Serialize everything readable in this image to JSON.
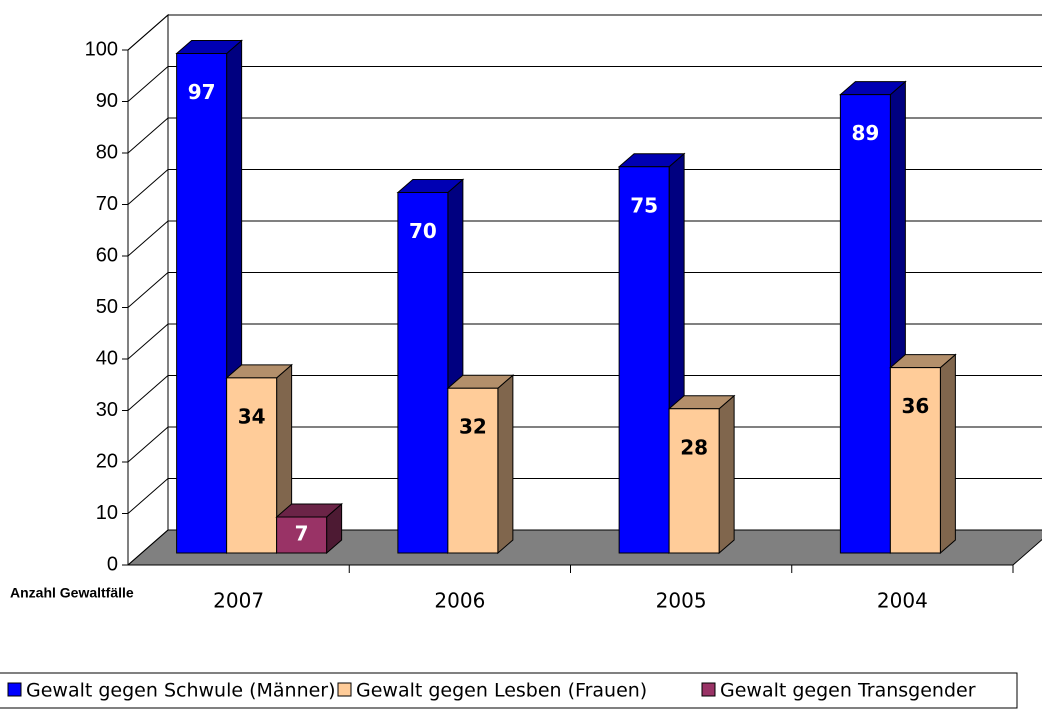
{
  "chart_data": {
    "type": "bar3d",
    "axis_label": "Anzahl Gewaltfälle",
    "categories": [
      "2007",
      "2006",
      "2005",
      "2004"
    ],
    "series": [
      {
        "name": "Gewalt gegen Schwule (Männer)",
        "color": "#0000ff",
        "values": [
          97,
          70,
          75,
          89
        ]
      },
      {
        "name": "Gewalt gegen Lesben (Frauen)",
        "color": "#ffcc99",
        "values": [
          34,
          32,
          28,
          36
        ]
      },
      {
        "name": "Gewalt gegen Transgender",
        "color": "#993366",
        "values": [
          7,
          null,
          null,
          null
        ]
      }
    ],
    "ylim": [
      0,
      100
    ],
    "yticks": [
      0,
      10,
      20,
      30,
      40,
      50,
      60,
      70,
      80,
      90,
      100
    ],
    "grid": true,
    "legend": "bottom"
  }
}
